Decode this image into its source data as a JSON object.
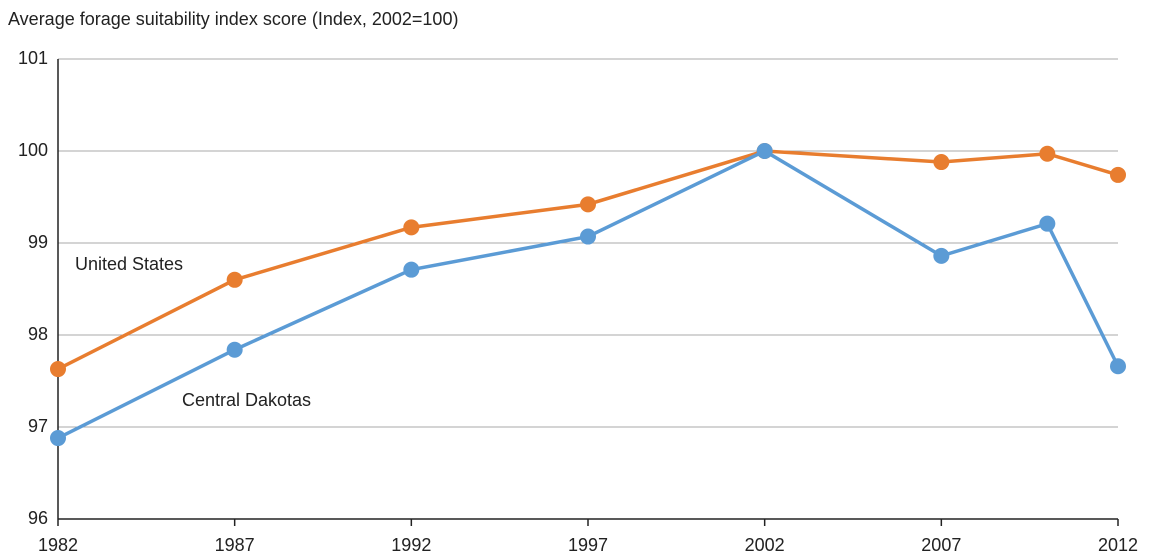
{
  "chart_data": {
    "type": "line",
    "title": "Average forage suitability index score (Index, 2002=100)",
    "x": [
      1982,
      1987,
      1992,
      1997,
      2002,
      2007,
      2010,
      2012
    ],
    "series": [
      {
        "name": "United States",
        "color": "#e87d2f",
        "values": [
          97.63,
          98.6,
          99.17,
          99.42,
          100.0,
          99.88,
          99.97,
          99.74
        ]
      },
      {
        "name": "Central Dakotas",
        "color": "#5b9bd5",
        "values": [
          96.88,
          97.84,
          98.71,
          99.07,
          100.0,
          98.86,
          99.21,
          97.66
        ]
      }
    ],
    "xlim": [
      1982,
      2012
    ],
    "xticks": [
      1982,
      1987,
      1992,
      1997,
      2002,
      2007,
      2012
    ],
    "ylim": [
      96,
      101
    ],
    "yticks": [
      96,
      97,
      98,
      99,
      100,
      101
    ],
    "grid": true
  }
}
